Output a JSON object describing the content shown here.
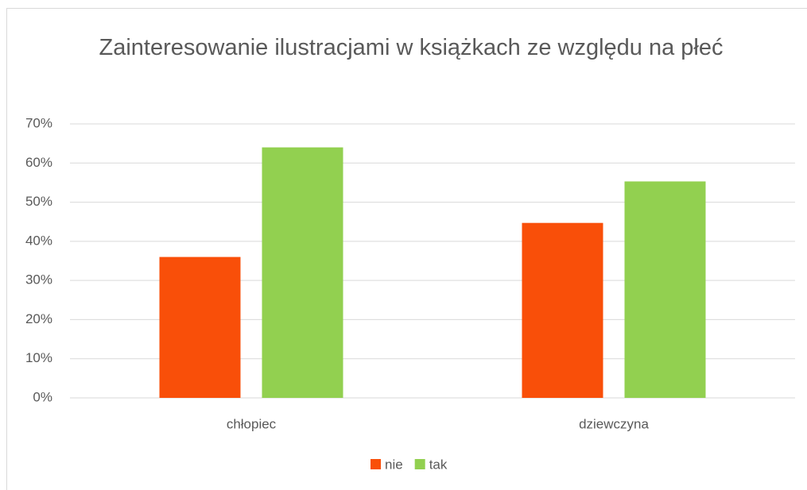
{
  "chart_data": {
    "type": "bar",
    "title": "Zainteresowanie ilustracjami w książkach ze względu na płeć",
    "categories": [
      "chłopiec",
      "dziewczyna"
    ],
    "series": [
      {
        "name": "nie",
        "color": "#f94f09",
        "values": [
          36,
          44.7
        ]
      },
      {
        "name": "tak",
        "color": "#92d050",
        "values": [
          64,
          55.3
        ]
      }
    ],
    "ylim": [
      0,
      70
    ],
    "yticks": [
      {
        "value": 0,
        "label": "0%"
      },
      {
        "value": 10,
        "label": "10%"
      },
      {
        "value": 20,
        "label": "20%"
      },
      {
        "value": 30,
        "label": "30%"
      },
      {
        "value": 40,
        "label": "40%"
      },
      {
        "value": 50,
        "label": "50%"
      },
      {
        "value": 60,
        "label": "60%"
      },
      {
        "value": 70,
        "label": "70%"
      }
    ],
    "grid": true,
    "legend": "bottom"
  }
}
